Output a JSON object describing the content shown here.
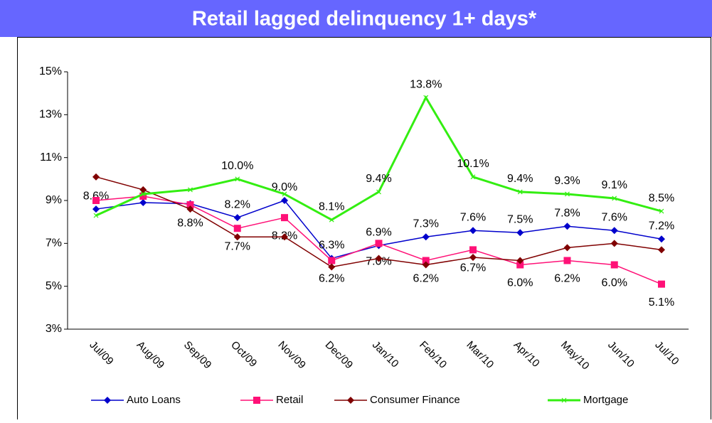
{
  "chart_data": {
    "type": "line",
    "title": "Retail lagged delinquency 1+ days*",
    "categories": [
      "Jul/09",
      "Aug/09",
      "Sep/09",
      "Oct/09",
      "Nov/09",
      "Dec/09",
      "Jan/10",
      "Feb/10",
      "Mar/10",
      "Apr/10",
      "May/10",
      "Jun/10",
      "Jul/10"
    ],
    "ylim": [
      3,
      15
    ],
    "yticks": [
      {
        "value": 3,
        "label": "3%"
      },
      {
        "value": 5,
        "label": "5%"
      },
      {
        "value": 7,
        "label": "7%"
      },
      {
        "value": 9,
        "label": "9%"
      },
      {
        "value": 11,
        "label": "11%"
      },
      {
        "value": 13,
        "label": "13%"
      },
      {
        "value": 15,
        "label": "15%"
      }
    ],
    "grid": false,
    "legend": "bottom",
    "series": [
      {
        "name": "Auto Loans",
        "color": "#0000cc",
        "marker": "diamond",
        "label_side": "above",
        "values": [
          8.6,
          8.9,
          8.85,
          8.2,
          9.0,
          6.3,
          6.9,
          7.3,
          7.6,
          7.5,
          7.8,
          7.6,
          7.2
        ],
        "value_labels": [
          "8.6%",
          null,
          null,
          "8.2%",
          "9.0%",
          "6.3%",
          "6.9%",
          "7.3%",
          "7.6%",
          "7.5%",
          "7.8%",
          "7.6%",
          "7.2%"
        ]
      },
      {
        "name": "Retail",
        "color": "#ff1177",
        "marker": "square",
        "label_side": "below",
        "values": [
          9.0,
          9.2,
          8.8,
          7.7,
          8.2,
          6.2,
          7.0,
          6.2,
          6.7,
          6.0,
          6.2,
          6.0,
          5.1
        ],
        "value_labels": [
          null,
          null,
          "8.8%",
          "7.7%",
          "8.2%",
          "6.2%",
          "7.0%",
          "6.2%",
          "6.7%",
          "6.0%",
          "6.2%",
          "6.0%",
          "5.1%"
        ]
      },
      {
        "name": "Consumer Finance",
        "color": "#800000",
        "marker": "diamond",
        "label_side": "none",
        "values": [
          10.1,
          9.5,
          8.6,
          7.3,
          7.3,
          5.9,
          6.3,
          6.0,
          6.35,
          6.2,
          6.8,
          7.0,
          6.7
        ]
      },
      {
        "name": "Mortgage",
        "color": "#33ee11",
        "marker": "x",
        "label_side": "above",
        "values": [
          8.3,
          9.3,
          9.5,
          10.0,
          9.3,
          8.1,
          9.4,
          13.8,
          10.1,
          9.4,
          9.3,
          9.1,
          8.5
        ],
        "value_labels": [
          null,
          null,
          null,
          "10.0%",
          null,
          "8.1%",
          "9.4%",
          "13.8%",
          "10.1%",
          "9.4%",
          "9.3%",
          "9.1%",
          "8.5%"
        ]
      }
    ]
  }
}
